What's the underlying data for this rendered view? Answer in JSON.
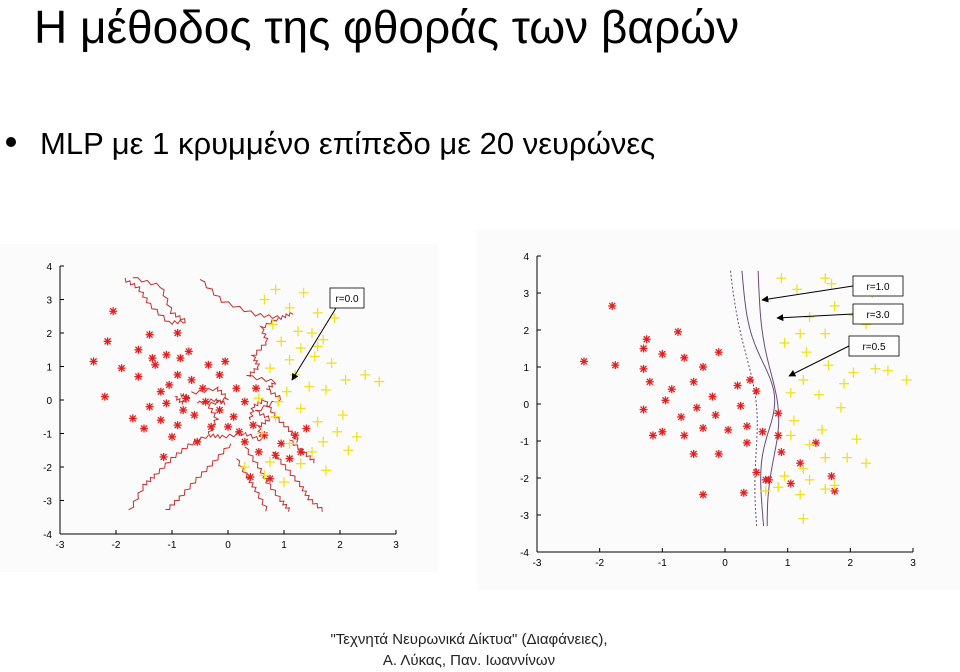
{
  "slide": {
    "title": "Η μέθοδος της φθοράς των βαρών",
    "bullet": "MLP με 1 κρυμμένο επίπεδο με 20 νευρώνες",
    "footer_line1": "\"Τεχνητά Νευρωνικά Δίκτυα\" (Διαφάνειες),",
    "footer_line2": "Α. Λύκας, Παν. Ιωαννίνων"
  },
  "colors": {
    "class_a": "#e02020",
    "class_b": "#f0e020",
    "boundary_left": "#c03030",
    "boundary_right": "#6a4a7a",
    "axis": "#000000"
  },
  "chart_data": [
    {
      "type": "scatter",
      "xlim": [
        -3,
        3
      ],
      "ylim": [
        -4,
        4
      ],
      "xticks": [
        "-3",
        "-2",
        "-1",
        "0",
        "1",
        "2",
        "3"
      ],
      "yticks": [
        "-4",
        "-3",
        "-2",
        "-1",
        "0",
        "1",
        "2",
        "3",
        "4"
      ],
      "annotations": [
        "r=0.0"
      ],
      "series": [
        {
          "marker": "star",
          "points": [
            [
              -2.05,
              2.65
            ],
            [
              -2.4,
              1.15
            ],
            [
              -1.4,
              1.95
            ],
            [
              -0.9,
              2.0
            ],
            [
              -2.15,
              1.75
            ],
            [
              -1.6,
              1.5
            ],
            [
              -1.35,
              1.25
            ],
            [
              -1.1,
              1.35
            ],
            [
              -0.85,
              1.25
            ],
            [
              -1.9,
              0.95
            ],
            [
              -1.3,
              1.05
            ],
            [
              -0.7,
              1.45
            ],
            [
              -1.6,
              0.7
            ],
            [
              -1.05,
              0.45
            ],
            [
              -0.65,
              0.6
            ],
            [
              -0.35,
              1.05
            ],
            [
              -0.9,
              0.75
            ],
            [
              -1.2,
              0.25
            ],
            [
              -0.45,
              0.35
            ],
            [
              -0.15,
              0.75
            ],
            [
              -0.05,
              1.15
            ],
            [
              -1.4,
              -0.2
            ],
            [
              -1.1,
              -0.1
            ],
            [
              -0.75,
              0.05
            ],
            [
              -0.4,
              -0.05
            ],
            [
              0.15,
              0.35
            ],
            [
              -1.5,
              -0.85
            ],
            [
              -1.2,
              -0.6
            ],
            [
              -0.9,
              -0.75
            ],
            [
              -0.6,
              -0.45
            ],
            [
              -0.3,
              -0.8
            ],
            [
              -1.7,
              -0.55
            ],
            [
              -1.0,
              -1.1
            ],
            [
              -0.55,
              -1.25
            ],
            [
              -1.15,
              -1.7
            ],
            [
              -0.15,
              -0.3
            ],
            [
              0.1,
              -0.5
            ],
            [
              0.3,
              -0.05
            ],
            [
              0.5,
              0.35
            ],
            [
              0.45,
              -0.75
            ],
            [
              0.2,
              -0.95
            ],
            [
              0.65,
              -1.05
            ],
            [
              0.85,
              -1.65
            ],
            [
              0.55,
              -1.55
            ],
            [
              0.3,
              -1.25
            ],
            [
              1.2,
              -1.05
            ],
            [
              1.4,
              -0.85
            ],
            [
              1.1,
              -1.75
            ],
            [
              0.95,
              -1.3
            ],
            [
              0.4,
              -2.3
            ],
            [
              0.75,
              -2.35
            ],
            [
              1.3,
              -1.55
            ],
            [
              -2.2,
              0.1
            ],
            [
              -0.8,
              -0.3
            ],
            [
              0.0,
              -0.8
            ]
          ]
        },
        {
          "marker": "plus",
          "points": [
            [
              0.85,
              3.3
            ],
            [
              1.35,
              3.2
            ],
            [
              0.65,
              3.0
            ],
            [
              1.1,
              2.75
            ],
            [
              1.6,
              2.6
            ],
            [
              1.9,
              2.45
            ],
            [
              0.8,
              2.25
            ],
            [
              1.25,
              2.05
            ],
            [
              1.5,
              2.0
            ],
            [
              1.7,
              1.8
            ],
            [
              0.95,
              1.75
            ],
            [
              1.3,
              1.55
            ],
            [
              1.55,
              1.3
            ],
            [
              1.1,
              1.2
            ],
            [
              1.85,
              1.1
            ],
            [
              2.1,
              0.6
            ],
            [
              2.45,
              0.75
            ],
            [
              1.2,
              0.75
            ],
            [
              0.75,
              0.95
            ],
            [
              1.45,
              0.4
            ],
            [
              1.75,
              0.3
            ],
            [
              1.05,
              0.25
            ],
            [
              0.55,
              0.05
            ],
            [
              1.3,
              -0.25
            ],
            [
              0.85,
              -0.5
            ],
            [
              1.6,
              -0.65
            ],
            [
              2.05,
              -0.45
            ],
            [
              1.95,
              -0.95
            ],
            [
              2.3,
              -1.1
            ],
            [
              1.7,
              -1.25
            ],
            [
              1.1,
              -1.3
            ],
            [
              1.5,
              -1.55
            ],
            [
              2.15,
              -1.5
            ],
            [
              0.75,
              -1.85
            ],
            [
              1.3,
              -1.9
            ],
            [
              1.75,
              -2.1
            ],
            [
              0.65,
              -2.25
            ],
            [
              1.0,
              -2.45
            ],
            [
              0.3,
              -2.0
            ],
            [
              0.6,
              -1.0
            ],
            [
              0.9,
              -0.05
            ],
            [
              1.6,
              1.6
            ],
            [
              2.7,
              0.55
            ]
          ]
        }
      ]
    },
    {
      "type": "scatter",
      "xlim": [
        -3,
        3
      ],
      "ylim": [
        -4,
        4
      ],
      "xticks": [
        "-3",
        "-2",
        "-1",
        "0",
        "1",
        "2",
        "3"
      ],
      "yticks": [
        "-4",
        "-3",
        "-2",
        "-1",
        "0",
        "1",
        "2",
        "3",
        "4"
      ],
      "annotations": [
        "r=1.0",
        "r=3.0",
        "r=0.5"
      ],
      "series": [
        {
          "marker": "star",
          "points": [
            [
              -1.8,
              2.65
            ],
            [
              -2.25,
              1.15
            ],
            [
              -1.25,
              1.75
            ],
            [
              -0.75,
              1.95
            ],
            [
              -1.3,
              1.5
            ],
            [
              -1.0,
              1.35
            ],
            [
              -0.65,
              1.25
            ],
            [
              -0.1,
              1.4
            ],
            [
              -0.35,
              1.0
            ],
            [
              -1.3,
              0.95
            ],
            [
              -1.2,
              0.6
            ],
            [
              -0.85,
              0.4
            ],
            [
              -0.5,
              0.6
            ],
            [
              -0.2,
              0.2
            ],
            [
              0.2,
              0.5
            ],
            [
              -0.95,
              0.1
            ],
            [
              -0.45,
              -0.1
            ],
            [
              -0.15,
              -0.3
            ],
            [
              0.25,
              -0.05
            ],
            [
              0.5,
              0.35
            ],
            [
              -1.3,
              -0.15
            ],
            [
              -0.7,
              -0.35
            ],
            [
              -1.0,
              -0.75
            ],
            [
              -0.65,
              -0.85
            ],
            [
              -0.35,
              -0.65
            ],
            [
              0.05,
              -0.7
            ],
            [
              0.35,
              -0.6
            ],
            [
              0.6,
              -0.75
            ],
            [
              -1.15,
              -0.85
            ],
            [
              -0.5,
              -1.35
            ],
            [
              -0.1,
              -1.35
            ],
            [
              0.35,
              -1.05
            ],
            [
              0.85,
              -0.25
            ],
            [
              0.85,
              -0.85
            ],
            [
              0.5,
              -1.85
            ],
            [
              0.65,
              -2.05
            ],
            [
              1.05,
              -2.15
            ],
            [
              1.2,
              -1.6
            ],
            [
              1.45,
              -1.05
            ],
            [
              1.7,
              -1.95
            ],
            [
              1.75,
              -2.35
            ],
            [
              0.3,
              -2.4
            ],
            [
              -0.35,
              -2.45
            ],
            [
              0.7,
              -2.05
            ],
            [
              0.9,
              -1.3
            ],
            [
              0.4,
              0.65
            ],
            [
              -1.75,
              1.05
            ]
          ]
        },
        {
          "marker": "plus",
          "points": [
            [
              0.9,
              3.4
            ],
            [
              1.6,
              3.4
            ],
            [
              1.7,
              3.25
            ],
            [
              1.15,
              3.1
            ],
            [
              2.35,
              3.0
            ],
            [
              1.75,
              2.65
            ],
            [
              1.35,
              2.35
            ],
            [
              2.05,
              2.4
            ],
            [
              2.25,
              2.15
            ],
            [
              1.6,
              1.9
            ],
            [
              1.2,
              1.9
            ],
            [
              0.95,
              1.65
            ],
            [
              1.3,
              1.4
            ],
            [
              2.25,
              1.45
            ],
            [
              1.65,
              1.05
            ],
            [
              2.05,
              0.85
            ],
            [
              2.4,
              0.95
            ],
            [
              2.9,
              0.65
            ],
            [
              1.25,
              0.65
            ],
            [
              1.05,
              0.3
            ],
            [
              1.5,
              0.25
            ],
            [
              1.85,
              -0.1
            ],
            [
              1.1,
              -0.45
            ],
            [
              1.55,
              -0.7
            ],
            [
              2.1,
              -0.95
            ],
            [
              1.35,
              -1.1
            ],
            [
              1.6,
              -1.45
            ],
            [
              1.95,
              -1.45
            ],
            [
              2.25,
              -1.6
            ],
            [
              1.25,
              -1.75
            ],
            [
              0.95,
              -1.95
            ],
            [
              1.35,
              -2.05
            ],
            [
              1.6,
              -2.3
            ],
            [
              0.85,
              -2.25
            ],
            [
              1.2,
              -2.45
            ],
            [
              0.65,
              -2.35
            ],
            [
              1.05,
              -0.85
            ],
            [
              1.9,
              0.55
            ],
            [
              2.6,
              0.9
            ],
            [
              1.75,
              -2.2
            ],
            [
              1.25,
              -3.1
            ]
          ]
        }
      ]
    }
  ]
}
